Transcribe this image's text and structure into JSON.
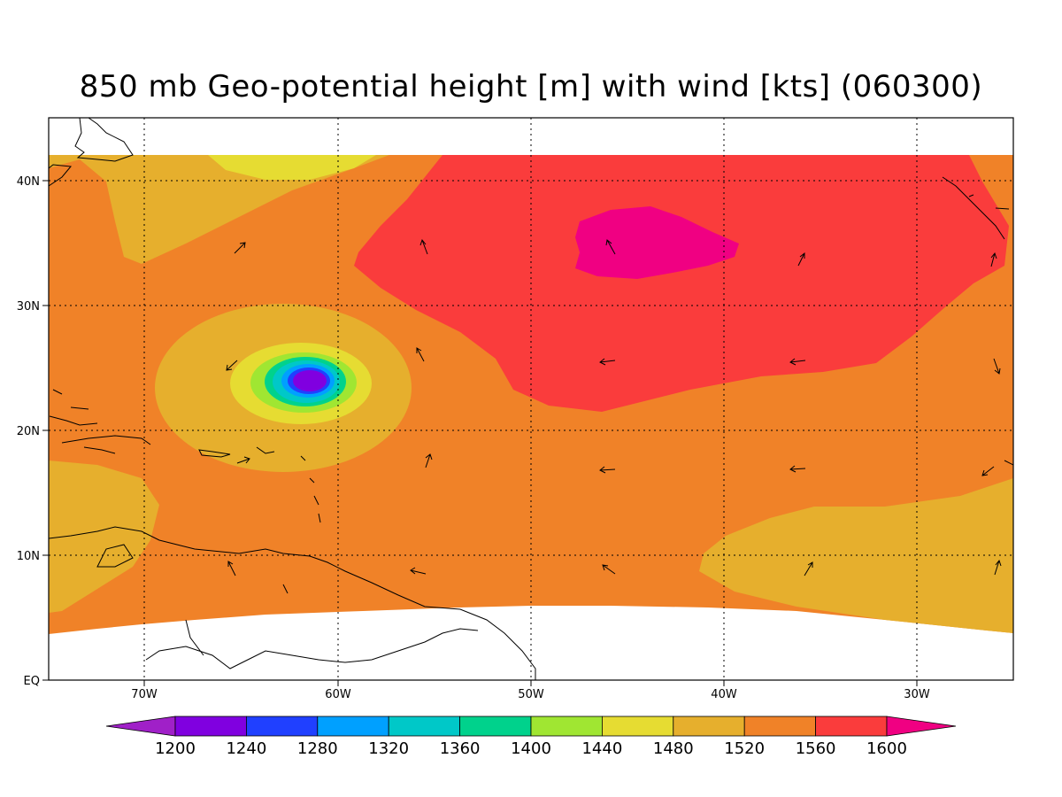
{
  "title": "850 mb Geo-potential height [m] with wind [kts] (060300)",
  "map": {
    "lon_ticks": [
      "70W",
      "60W",
      "50W",
      "40W",
      "30W"
    ],
    "lat_ticks": [
      "EQ",
      "10N",
      "20N",
      "30N",
      "40N"
    ],
    "lon_range": [
      -75,
      -25
    ],
    "lat_range": [
      0,
      45
    ],
    "field_lat_range": [
      4,
      42
    ],
    "grid": "dotted"
  },
  "colorbar": {
    "levels": [
      "1200",
      "1240",
      "1280",
      "1320",
      "1360",
      "1400",
      "1440",
      "1480",
      "1520",
      "1560",
      "1600"
    ],
    "colors": [
      "#a020c8",
      "#8000e0",
      "#2040ff",
      "#00a0ff",
      "#00c8c8",
      "#00d28c",
      "#a0e632",
      "#e6dc32",
      "#e6af2d",
      "#f08228",
      "#fa3c3c",
      "#f00082"
    ]
  },
  "fill_colors": {
    "c1480": "#e6dc32",
    "c1520": "#e6af2d",
    "c1560": "#f08228",
    "c1600": "#fa3c3c",
    "c1640": "#f00082",
    "c1440": "#a0e632",
    "c1400": "#00d28c",
    "c1360": "#00c8c8",
    "c1320": "#00a0ff",
    "c1280": "#2040ff",
    "c1240": "#8000e0",
    "c1200": "#a020c8"
  }
}
